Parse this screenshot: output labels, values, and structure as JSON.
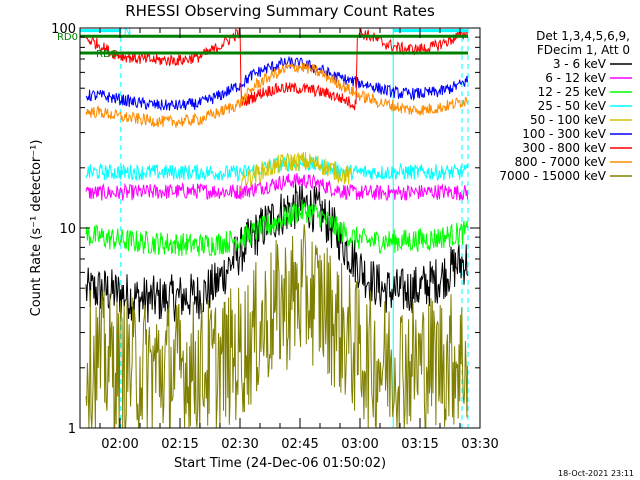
{
  "page": {
    "title": "RHESSI Observing Summary Count Rates",
    "footer_timestamp": "18-Oct-2021 23:11"
  },
  "chart_data": {
    "type": "line",
    "title": "RHESSI Observing Summary Count Rates",
    "xlabel": "Start Time (24-Dec-06 01:50:02)",
    "ylabel": "Count Rate (s⁻¹ detector⁻¹)",
    "y_scale": "log",
    "ylim": [
      1,
      100
    ],
    "xlim": [
      "01:50",
      "03:30"
    ],
    "x_unit": "minutes after 01:50",
    "x_ticks": [
      {
        "label": "02:00",
        "t": 10
      },
      {
        "label": "02:15",
        "t": 25
      },
      {
        "label": "02:30",
        "t": 40
      },
      {
        "label": "02:45",
        "t": 55
      },
      {
        "label": "03:00",
        "t": 70
      },
      {
        "label": "03:15",
        "t": 85
      },
      {
        "label": "03:30",
        "t": 100
      }
    ],
    "y_ticks": [
      {
        "label": "1",
        "value": 1
      },
      {
        "label": "10",
        "value": 10
      },
      {
        "label": "100",
        "value": 100
      }
    ],
    "legend": {
      "position": "right",
      "header_lines": [
        "Det 1,3,4,5,6,9,",
        "FDecim 1, Att 0"
      ]
    },
    "series": [
      {
        "name": "3 - 6 keV",
        "color": "#000000",
        "points": [
          [
            1.5,
            4.8
          ],
          [
            5,
            4.9
          ],
          [
            10,
            4.7
          ],
          [
            15,
            4.4
          ],
          [
            20,
            4.4
          ],
          [
            25,
            4.5
          ],
          [
            30,
            4.6
          ],
          [
            34,
            5.2
          ],
          [
            38,
            6.8
          ],
          [
            42,
            8.5
          ],
          [
            46,
            10.2
          ],
          [
            50,
            11.8
          ],
          [
            54,
            12.8
          ],
          [
            57,
            12.9
          ],
          [
            60,
            12
          ],
          [
            64,
            9.5
          ],
          [
            68,
            7.2
          ],
          [
            72,
            5.6
          ],
          [
            76,
            4.9
          ],
          [
            80,
            4.8
          ],
          [
            85,
            5
          ],
          [
            90,
            5.6
          ],
          [
            94,
            6.5
          ],
          [
            97,
            6.9
          ]
        ]
      },
      {
        "name": "6 - 12 keV",
        "color": "#ff00ff",
        "points": [
          [
            1.5,
            15
          ],
          [
            10,
            15
          ],
          [
            20,
            15.2
          ],
          [
            30,
            15.3
          ],
          [
            40,
            15.2
          ],
          [
            44,
            15.8
          ],
          [
            48,
            16.5
          ],
          [
            52,
            17.2
          ],
          [
            56,
            17.3
          ],
          [
            60,
            16.5
          ],
          [
            64,
            15.6
          ],
          [
            68,
            15
          ],
          [
            80,
            15
          ],
          [
            90,
            15.2
          ],
          [
            97,
            15
          ]
        ]
      },
      {
        "name": "12 - 25 keV",
        "color": "#00ff00",
        "points": [
          [
            1.5,
            9.2
          ],
          [
            5,
            9
          ],
          [
            10,
            8.7
          ],
          [
            15,
            8.5
          ],
          [
            20,
            8.4
          ],
          [
            25,
            8.3
          ],
          [
            30,
            8.2
          ],
          [
            35,
            8.4
          ],
          [
            40,
            8.8
          ],
          [
            45,
            9.8
          ],
          [
            50,
            11
          ],
          [
            54,
            12
          ],
          [
            57,
            12.2
          ],
          [
            60,
            11.5
          ],
          [
            64,
            10
          ],
          [
            68,
            9
          ],
          [
            72,
            8.6
          ],
          [
            80,
            8.6
          ],
          [
            88,
            8.8
          ],
          [
            94,
            9.3
          ],
          [
            97,
            9.6
          ]
        ]
      },
      {
        "name": "25 - 50 keV",
        "color": "#00ffff",
        "points": [
          [
            1.5,
            19
          ],
          [
            10,
            19
          ],
          [
            20,
            19
          ],
          [
            30,
            19
          ],
          [
            40,
            18.8
          ],
          [
            44,
            19.5
          ],
          [
            48,
            20.5
          ],
          [
            52,
            21
          ],
          [
            56,
            21
          ],
          [
            60,
            20.5
          ],
          [
            64,
            19.5
          ],
          [
            68,
            19
          ],
          [
            80,
            19
          ],
          [
            90,
            19
          ],
          [
            97,
            19
          ]
        ]
      },
      {
        "name": "50 - 100 keV",
        "color": "#d4c400",
        "points": [
          [
            40,
            17.2
          ],
          [
            44,
            18.6
          ],
          [
            48,
            20.2
          ],
          [
            52,
            21.4
          ],
          [
            56,
            21.6
          ],
          [
            60,
            20.8
          ],
          [
            64,
            19.2
          ],
          [
            68,
            17.8
          ]
        ]
      },
      {
        "name": "100 - 300 keV",
        "color": "#0000ff",
        "points": [
          [
            1.5,
            46
          ],
          [
            5,
            46
          ],
          [
            10,
            44
          ],
          [
            15,
            42
          ],
          [
            20,
            41
          ],
          [
            25,
            41
          ],
          [
            30,
            42
          ],
          [
            35,
            46
          ],
          [
            40,
            52
          ],
          [
            43,
            58
          ],
          [
            46,
            62
          ],
          [
            50,
            66
          ],
          [
            53,
            67
          ],
          [
            56,
            66
          ],
          [
            60,
            62
          ],
          [
            64,
            57
          ],
          [
            68,
            54
          ],
          [
            72,
            52
          ],
          [
            76,
            49
          ],
          [
            80,
            47
          ],
          [
            85,
            47
          ],
          [
            90,
            48
          ],
          [
            95,
            52
          ],
          [
            97,
            55
          ]
        ]
      },
      {
        "name": "300 - 800 keV",
        "color": "#ff0000",
        "points": [
          [
            1.5,
            88
          ],
          [
            3,
            86
          ],
          [
            5,
            82
          ],
          [
            7,
            77
          ],
          [
            10,
            73
          ],
          [
            15,
            70
          ],
          [
            20,
            69
          ],
          [
            25,
            69
          ],
          [
            30,
            72
          ],
          [
            34,
            79
          ],
          [
            37,
            87
          ],
          [
            39,
            93
          ],
          [
            40,
            95
          ],
          [
            40.3,
            42
          ],
          [
            43,
            45
          ],
          [
            46,
            48
          ],
          [
            50,
            50
          ],
          [
            54,
            50
          ],
          [
            58,
            49
          ],
          [
            62,
            47
          ],
          [
            66,
            44
          ],
          [
            69,
            41
          ],
          [
            69.3,
            95
          ],
          [
            72,
            92
          ],
          [
            76,
            84
          ],
          [
            80,
            79
          ],
          [
            84,
            78
          ],
          [
            88,
            80
          ],
          [
            92,
            86
          ],
          [
            95,
            92
          ],
          [
            97,
            95
          ]
        ]
      },
      {
        "name": "800 - 7000 keV",
        "color": "#ff8c00",
        "points": [
          [
            1.5,
            38
          ],
          [
            5,
            38
          ],
          [
            10,
            36
          ],
          [
            15,
            35
          ],
          [
            20,
            34
          ],
          [
            25,
            34
          ],
          [
            30,
            35
          ],
          [
            35,
            38
          ],
          [
            40,
            42
          ],
          [
            44,
            52
          ],
          [
            48,
            58
          ],
          [
            52,
            63
          ],
          [
            55,
            64
          ],
          [
            58,
            62
          ],
          [
            62,
            57
          ],
          [
            66,
            51
          ],
          [
            70,
            46
          ],
          [
            74,
            43
          ],
          [
            78,
            41
          ],
          [
            82,
            39
          ],
          [
            86,
            39
          ],
          [
            90,
            40
          ],
          [
            94,
            42
          ],
          [
            97,
            44
          ]
        ]
      },
      {
        "name": "7000 - 15000 keV",
        "color": "#808000",
        "points": [
          [
            1.5,
            2.2
          ],
          [
            5,
            2.2
          ],
          [
            10,
            2.1
          ],
          [
            15,
            2
          ],
          [
            20,
            2
          ],
          [
            25,
            2
          ],
          [
            30,
            2
          ],
          [
            35,
            2.1
          ],
          [
            40,
            2.4
          ],
          [
            45,
            3.2
          ],
          [
            50,
            4.1
          ],
          [
            54,
            4.6
          ],
          [
            57,
            4.7
          ],
          [
            60,
            4.3
          ],
          [
            64,
            3.4
          ],
          [
            68,
            2.6
          ],
          [
            72,
            2.2
          ],
          [
            76,
            2.1
          ],
          [
            80,
            2.1
          ],
          [
            85,
            2.1
          ],
          [
            90,
            2.2
          ],
          [
            95,
            2.2
          ],
          [
            97,
            2.2
          ]
        ]
      }
    ],
    "markers": {
      "cyan_solid_times": [
        0,
        78.3
      ],
      "cyan_dashed_times": [
        10.2,
        95.5,
        97
      ],
      "bars": [
        {
          "label": "N",
          "color": "#00ffff",
          "segments": [
            [
              0,
              10.2
            ],
            [
              78.3,
              97
            ]
          ],
          "level": 97
        },
        {
          "label": "RD0",
          "color": "#008000",
          "segments": [
            [
              0,
              97
            ]
          ],
          "level": 91
        },
        {
          "label": "RD6",
          "color": "#008000",
          "segments": [
            [
              0,
              97
            ]
          ],
          "level": 75
        }
      ]
    }
  }
}
